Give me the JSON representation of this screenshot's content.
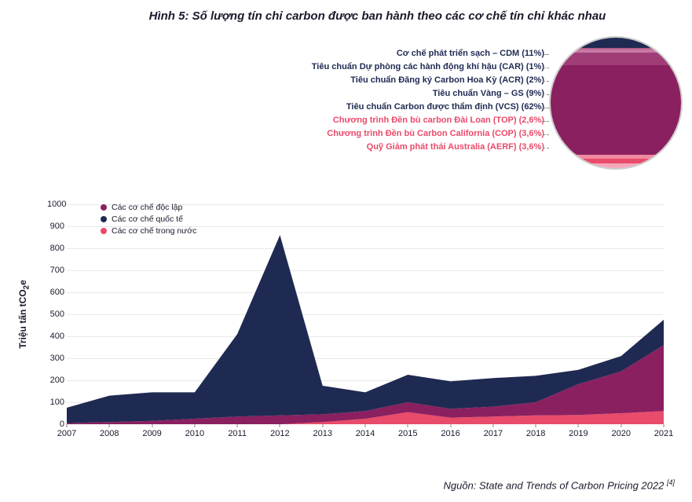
{
  "title": "Hình 5: Số lượng tín chỉ carbon được ban hành theo các cơ chế tín chỉ khác nhau",
  "source": "Nguồn: State and Trends of Carbon Pricing 2022",
  "source_ref": "[4]",
  "chart": {
    "type": "area",
    "ylabel": "Triệu tấn tCO",
    "ylabel_sub": "2",
    "ylabel_suffix": "e",
    "ylim": [
      0,
      1000
    ],
    "ytick_step": 100,
    "yticks": [
      0,
      100,
      200,
      300,
      400,
      500,
      600,
      700,
      800,
      900,
      1000
    ],
    "categories": [
      "2007",
      "2008",
      "2009",
      "2010",
      "2011",
      "2012",
      "2013",
      "2014",
      "2015",
      "2016",
      "2017",
      "2018",
      "2019",
      "2020",
      "2021"
    ],
    "grid_color": "#e8e8e8",
    "background_color": "#ffffff",
    "series": [
      {
        "key": "domestic",
        "label": "Các cơ chế trong nước",
        "color": "#e94b6a",
        "values": [
          0,
          0,
          0,
          0,
          0,
          0,
          10,
          25,
          55,
          30,
          35,
          40,
          42,
          50,
          60
        ]
      },
      {
        "key": "independent",
        "label": "Các cơ chế độc lập",
        "color": "#8a2060",
        "values": [
          5,
          10,
          15,
          25,
          35,
          40,
          35,
          35,
          45,
          40,
          45,
          60,
          140,
          190,
          300
        ]
      },
      {
        "key": "international",
        "label": "Các cơ chế quốc tế",
        "color": "#1f2a52",
        "values": [
          70,
          120,
          130,
          120,
          375,
          820,
          130,
          85,
          125,
          125,
          130,
          120,
          65,
          70,
          115
        ]
      }
    ],
    "legend_order": [
      "independent",
      "international",
      "domestic"
    ]
  },
  "inset": {
    "segments": [
      {
        "label": "Cơ chế phát triển sạch – CDM (11%)",
        "color": "#1f2a52",
        "pct": 11
      },
      {
        "label": "Tiêu chuẩn Dự phòng các hành động khí hậu (CAR) (1%)",
        "color": "#b85c8e",
        "pct": 1
      },
      {
        "label": "Tiêu chuẩn Đăng ký Carbon Hoa Kỳ (ACR) (2%)",
        "color": "#c77aa3",
        "pct": 2
      },
      {
        "label": "Tiêu chuẩn Vàng – GS (9%)",
        "color": "#a03d77",
        "pct": 9
      },
      {
        "label": "Tiêu chuẩn Carbon được thẩm định (VCS) (62%)",
        "color": "#8a2060",
        "pct": 62
      },
      {
        "label": "Chương trình Đền bù carbon Đài Loan (TOP) (2,6%)",
        "color": "#f08aa0",
        "pct": 2.6
      },
      {
        "label": "Chương trình Đền bù Carbon California (COP) (3,6%)",
        "color": "#e94b6a",
        "pct": 3.6
      },
      {
        "label": "Quỹ Giảm phát thải Australia (AERF) (3,6%)",
        "color": "#f4a7b8",
        "pct": 3.6
      }
    ],
    "callout_color_top5": "#1f2a52",
    "callout_color_bottom3": "#e94b6a"
  }
}
